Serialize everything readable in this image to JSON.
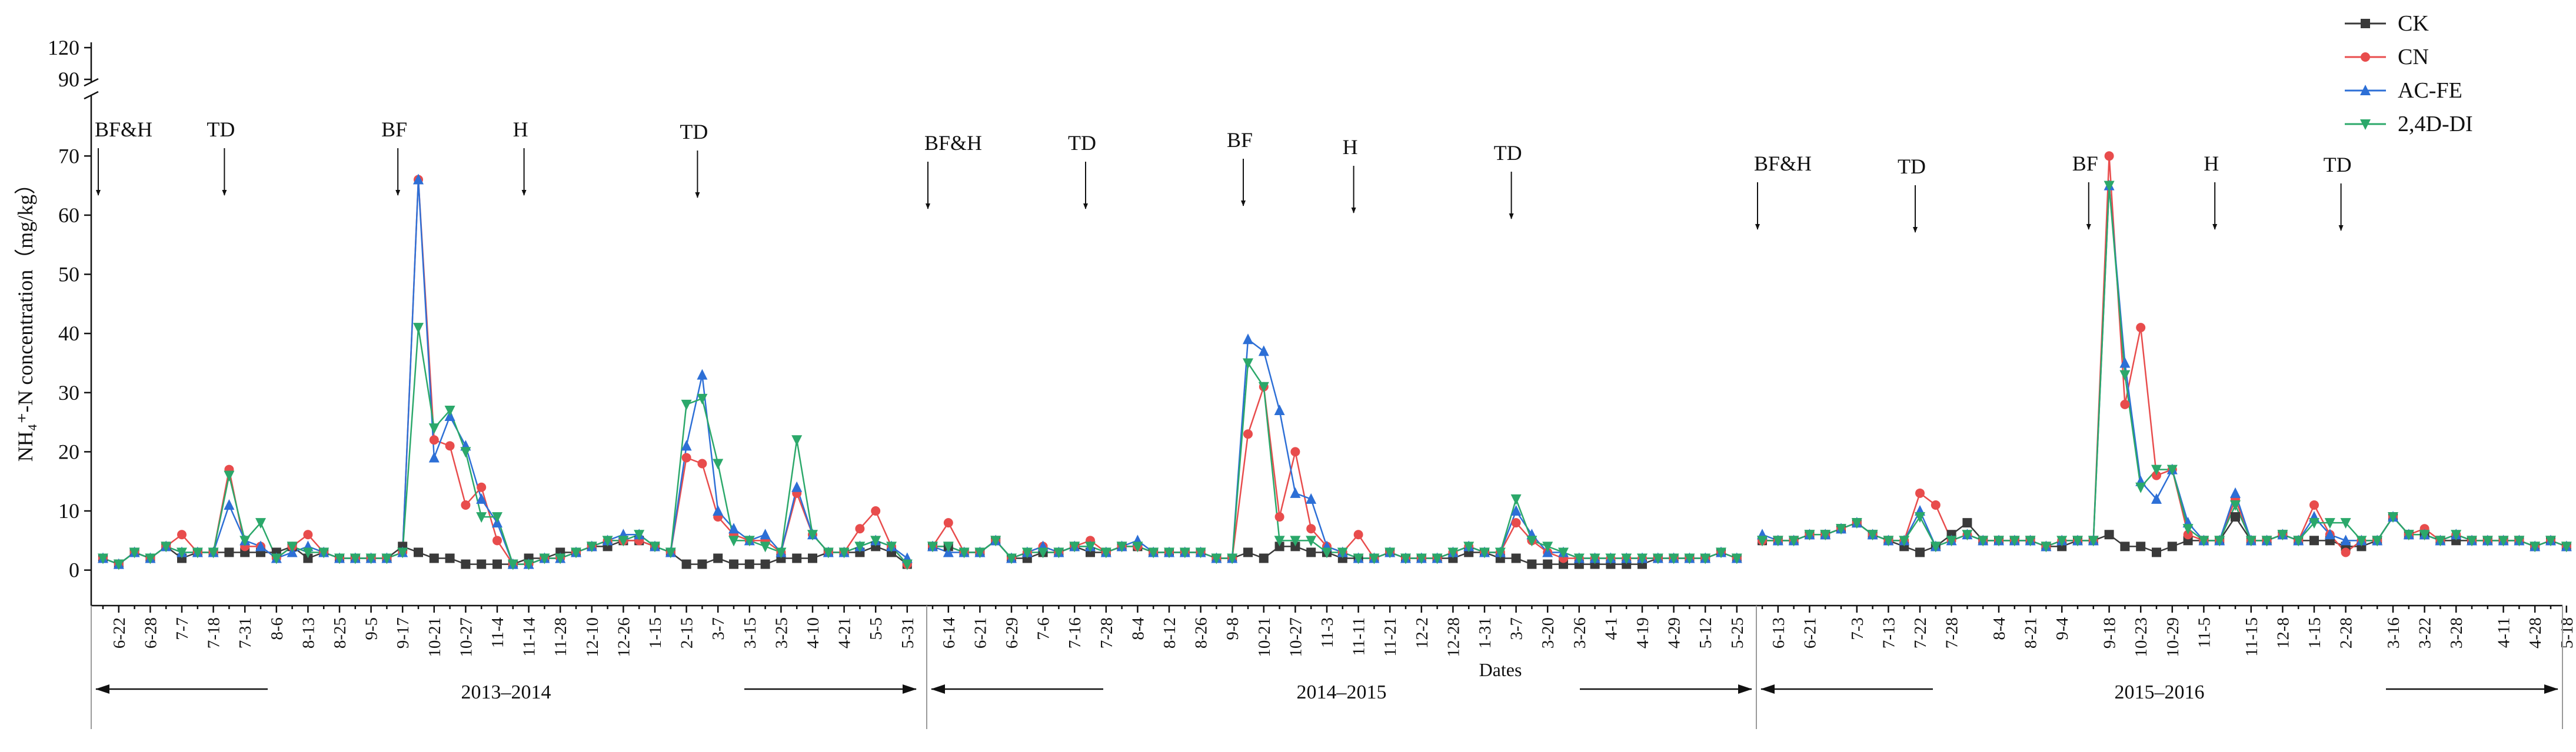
{
  "chart_data": {
    "type": "line",
    "x_label": "Dates",
    "y_label": "NH₄⁺-N concentration（mg/kg）",
    "ylim": [
      -6,
      125
    ],
    "y_break": [
      75,
      85
    ],
    "yticks": [
      0,
      10,
      20,
      30,
      40,
      50,
      60,
      70,
      90,
      120
    ],
    "periods": [
      "2013–2014",
      "2014–2015",
      "2015–2016"
    ],
    "annotations": [
      "BF&H",
      "TD",
      "BF",
      "H",
      "TD",
      "BF&H",
      "TD",
      "BF",
      "H",
      "TD",
      "BF&H",
      "TD",
      "BF",
      "H",
      "TD"
    ],
    "categories": [
      null,
      "6-22",
      null,
      "6-28",
      null,
      "7-7",
      null,
      "7-18",
      null,
      "7-31",
      null,
      "8-6",
      null,
      "8-13",
      null,
      "8-25",
      null,
      "9-5",
      null,
      "9-17",
      null,
      "10-21",
      null,
      "10-27",
      null,
      "11-4",
      null,
      "11-14",
      null,
      "11-28",
      null,
      "12-10",
      null,
      "12-26",
      null,
      "1-15",
      null,
      "2-15",
      null,
      "3-7",
      null,
      "3-15",
      null,
      "3-25",
      null,
      "4-10",
      null,
      "4-21",
      null,
      "5-5",
      null,
      "5-31",
      null,
      "6-14",
      null,
      "6-21",
      null,
      "6-29",
      null,
      "7-6",
      null,
      "7-16",
      null,
      "7-28",
      null,
      "8-4",
      null,
      "8-12",
      null,
      "8-26",
      null,
      "9-8",
      null,
      "10-21",
      null,
      "10-27",
      null,
      "11-3",
      null,
      "11-11",
      null,
      "11-21",
      null,
      "12-2",
      null,
      "12-28",
      null,
      "1-31",
      null,
      "3-7",
      null,
      "3-20",
      null,
      "3-26",
      null,
      "4-1",
      null,
      "4-19",
      null,
      "4-29",
      null,
      "5-12",
      null,
      "5-25",
      null,
      "6-13",
      null,
      "6-21",
      null,
      null,
      "7-3",
      null,
      "7-13",
      null,
      "7-22",
      null,
      "7-28",
      null,
      null,
      "8-4",
      null,
      "8-21",
      null,
      "9-4",
      null,
      null,
      "9-18",
      null,
      "10-23",
      null,
      "10-29",
      null,
      "11-5",
      null,
      null,
      "11-15",
      null,
      "12-8",
      null,
      "1-15",
      null,
      "2-28",
      null,
      null,
      "3-16",
      null,
      "3-22",
      null,
      "3-28",
      null,
      null,
      "4-11",
      null,
      "4-28",
      null,
      "5-18"
    ],
    "series": [
      {
        "name": "CK",
        "color": "#3a3a3a",
        "values": [
          2,
          1,
          3,
          2,
          4,
          2,
          3,
          3,
          3,
          3,
          3,
          3,
          4,
          2,
          3,
          2,
          2,
          2,
          2,
          4,
          3,
          2,
          2,
          1,
          1,
          1,
          1,
          2,
          2,
          3,
          3,
          4,
          4,
          5,
          5,
          4,
          3,
          1,
          1,
          2,
          1,
          1,
          1,
          2,
          2,
          2,
          3,
          3,
          3,
          4,
          3,
          1,
          4,
          4,
          3,
          3,
          5,
          2,
          2,
          3,
          3,
          4,
          3,
          3,
          4,
          4,
          3,
          3,
          3,
          3,
          2,
          2,
          3,
          2,
          4,
          4,
          3,
          3,
          2,
          2,
          2,
          3,
          2,
          2,
          2,
          2,
          3,
          3,
          2,
          2,
          1,
          1,
          1,
          1,
          1,
          1,
          1,
          1,
          2,
          2,
          2,
          2,
          3,
          2,
          5,
          5,
          5,
          6,
          6,
          7,
          8,
          6,
          5,
          4,
          3,
          4,
          6,
          8,
          5,
          5,
          5,
          5,
          4,
          4,
          5,
          5,
          6,
          4,
          4,
          3,
          4,
          5,
          5,
          5,
          9,
          5,
          5,
          6,
          5,
          5,
          5,
          4,
          4,
          5,
          9,
          6,
          6,
          5,
          5,
          5,
          5,
          5,
          5,
          4,
          5,
          4
        ]
      },
      {
        "name": "CN",
        "color": "#e84c4c",
        "values": [
          2,
          1,
          3,
          2,
          4,
          6,
          3,
          3,
          17,
          4,
          4,
          2,
          4,
          6,
          3,
          2,
          2,
          2,
          2,
          3,
          66,
          22,
          21,
          11,
          14,
          5,
          1,
          1,
          2,
          2,
          3,
          4,
          5,
          5,
          5,
          4,
          3,
          19,
          18,
          9,
          6,
          5,
          5,
          3,
          13,
          6,
          3,
          3,
          7,
          10,
          4,
          1,
          4,
          8,
          3,
          3,
          5,
          2,
          3,
          4,
          3,
          4,
          5,
          3,
          4,
          4,
          3,
          3,
          3,
          3,
          2,
          2,
          23,
          31,
          9,
          20,
          7,
          4,
          3,
          6,
          2,
          3,
          2,
          2,
          2,
          3,
          4,
          3,
          3,
          8,
          5,
          3,
          2,
          2,
          2,
          2,
          2,
          2,
          2,
          2,
          2,
          2,
          3,
          2,
          5,
          5,
          5,
          6,
          6,
          7,
          8,
          6,
          5,
          5,
          13,
          11,
          5,
          6,
          5,
          5,
          5,
          5,
          4,
          5,
          5,
          5,
          70,
          28,
          41,
          16,
          17,
          6,
          5,
          5,
          12,
          5,
          5,
          6,
          5,
          11,
          6,
          3,
          5,
          5,
          9,
          6,
          7,
          5,
          6,
          5,
          5,
          5,
          5,
          4,
          5,
          4
        ]
      },
      {
        "name": "AC-FE",
        "color": "#2d6fd6",
        "values": [
          2,
          1,
          3,
          2,
          4,
          3,
          3,
          3,
          11,
          5,
          4,
          2,
          3,
          4,
          3,
          2,
          2,
          2,
          2,
          3,
          66,
          19,
          26,
          21,
          12,
          8,
          1,
          1,
          2,
          2,
          3,
          4,
          5,
          6,
          6,
          4,
          3,
          21,
          33,
          10,
          7,
          5,
          6,
          3,
          14,
          6,
          3,
          3,
          4,
          5,
          4,
          2,
          4,
          3,
          3,
          3,
          5,
          2,
          3,
          4,
          3,
          4,
          4,
          3,
          4,
          5,
          3,
          3,
          3,
          3,
          2,
          2,
          39,
          37,
          27,
          13,
          12,
          4,
          3,
          2,
          2,
          3,
          2,
          2,
          2,
          3,
          4,
          3,
          3,
          10,
          6,
          3,
          3,
          2,
          2,
          2,
          2,
          2,
          2,
          2,
          2,
          2,
          3,
          2,
          6,
          5,
          5,
          6,
          6,
          7,
          8,
          6,
          5,
          5,
          10,
          4,
          5,
          6,
          5,
          5,
          5,
          5,
          4,
          5,
          5,
          5,
          65,
          35,
          15,
          12,
          17,
          8,
          5,
          5,
          13,
          5,
          5,
          6,
          5,
          9,
          6,
          5,
          5,
          5,
          9,
          6,
          6,
          5,
          6,
          5,
          5,
          5,
          5,
          4,
          5,
          4
        ]
      },
      {
        "name": "2,4D-DI",
        "color": "#2ba86a",
        "values": [
          2,
          1,
          3,
          2,
          4,
          3,
          3,
          3,
          16,
          5,
          8,
          2,
          4,
          3,
          3,
          2,
          2,
          2,
          2,
          3,
          41,
          24,
          27,
          20,
          9,
          9,
          1,
          1,
          2,
          2,
          3,
          4,
          5,
          5,
          6,
          4,
          3,
          28,
          29,
          18,
          5,
          5,
          4,
          3,
          22,
          6,
          3,
          3,
          4,
          5,
          4,
          1,
          4,
          4,
          3,
          3,
          5,
          2,
          3,
          3,
          3,
          4,
          4,
          3,
          4,
          4,
          3,
          3,
          3,
          3,
          2,
          2,
          35,
          31,
          5,
          5,
          5,
          3,
          3,
          2,
          2,
          3,
          2,
          2,
          2,
          3,
          4,
          3,
          3,
          12,
          5,
          4,
          3,
          2,
          2,
          2,
          2,
          2,
          2,
          2,
          2,
          2,
          3,
          2,
          5,
          5,
          5,
          6,
          6,
          7,
          8,
          6,
          5,
          5,
          9,
          4,
          5,
          6,
          5,
          5,
          5,
          5,
          4,
          5,
          5,
          5,
          65,
          33,
          14,
          17,
          17,
          7,
          5,
          5,
          11,
          5,
          5,
          6,
          5,
          8,
          8,
          8,
          5,
          5,
          9,
          6,
          6,
          5,
          6,
          5,
          5,
          5,
          5,
          4,
          5,
          4
        ]
      }
    ]
  }
}
